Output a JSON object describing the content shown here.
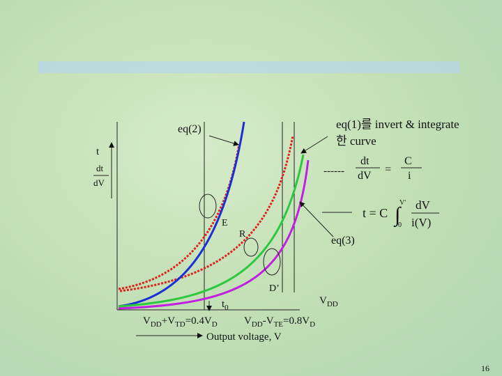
{
  "labels": {
    "eq2": "eq(2)",
    "eq1_line1": "eq(1)를 invert & integrate",
    "eq1_line2": "한 curve",
    "t_axis": "t",
    "dt_axis": "dt",
    "dV_axis": "dV",
    "dt_frac": "dt",
    "dV_frac": "dV",
    "equals": "=",
    "C_frac": "C",
    "i_frac": "i",
    "dashes": "------",
    "formula": {
      "lhs": "t = C",
      "integral": "∫",
      "lower": "0",
      "upper": "V'",
      "num": "dV",
      "den": "i(V)"
    },
    "E": "E",
    "R": "R",
    "eq3": "eq(3)",
    "Dprime": "D’",
    "t0": [
      "t",
      "0"
    ],
    "vdd": [
      "V",
      "DD"
    ],
    "vtd": [
      "V",
      "DD",
      "+V",
      "TD",
      "=0.4V",
      "D"
    ],
    "vte": [
      "V",
      "DD",
      "-V",
      "TE",
      "=0.8V",
      "D"
    ],
    "x_axis": "Output voltage, V",
    "page_number": "16"
  }
}
